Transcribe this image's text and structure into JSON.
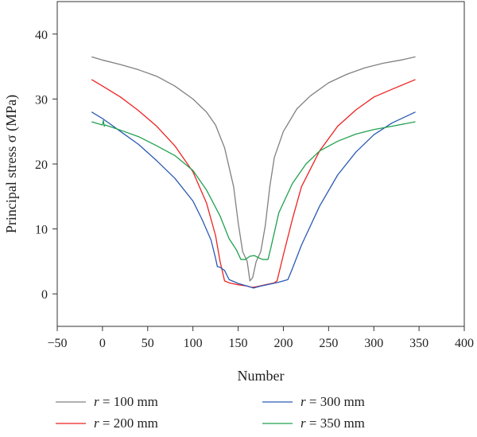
{
  "chart_data": {
    "type": "line",
    "xlabel": "Number",
    "ylabel": "Principal stress σ (MPa)",
    "xlim": [
      -50,
      400
    ],
    "ylim": [
      -5,
      45
    ],
    "xticks": [
      "−50",
      "0",
      "50",
      "100",
      "150",
      "200",
      "250",
      "300",
      "350",
      "400"
    ],
    "yticks": [
      "0",
      "10",
      "20",
      "30",
      "40"
    ],
    "xtick_values": [
      -50,
      0,
      50,
      100,
      150,
      200,
      250,
      300,
      350,
      400
    ],
    "ytick_values": [
      0,
      10,
      20,
      30,
      40
    ],
    "grid": false,
    "legend": {
      "placement": "bottom",
      "columns": 2
    },
    "series": [
      {
        "name_var": "r",
        "name_rest": " = 100 mm",
        "color": "#808080",
        "x": [
          -12,
          0,
          20,
          40,
          60,
          80,
          100,
          115,
          125,
          135,
          145,
          150,
          155,
          160,
          163,
          166,
          170,
          175,
          180,
          185,
          190,
          200,
          215,
          230,
          250,
          270,
          290,
          310,
          330,
          346
        ],
        "y": [
          36.5,
          36.0,
          35.3,
          34.5,
          33.5,
          32.0,
          30.0,
          28.0,
          26.0,
          22.5,
          16.5,
          11.0,
          6.5,
          5.0,
          2.0,
          2.5,
          5.0,
          6.5,
          10.5,
          16.5,
          21.0,
          25.0,
          28.5,
          30.5,
          32.5,
          33.8,
          34.8,
          35.5,
          36.0,
          36.5
        ]
      },
      {
        "name_var": "r",
        "name_rest": " = 200 mm",
        "color": "#ee2222",
        "x": [
          -12,
          0,
          20,
          40,
          60,
          80,
          100,
          115,
          125,
          130,
          135,
          140,
          150,
          160,
          165,
          170,
          180,
          190,
          193,
          200,
          210,
          220,
          240,
          260,
          280,
          300,
          320,
          346
        ],
        "y": [
          33.0,
          32.0,
          30.3,
          28.2,
          25.8,
          22.8,
          18.8,
          14.0,
          9.0,
          5.0,
          2.0,
          1.7,
          1.4,
          1.2,
          1.0,
          1.1,
          1.4,
          1.7,
          2.0,
          6.0,
          11.5,
          16.5,
          22.0,
          25.8,
          28.3,
          30.3,
          31.5,
          33.0
        ]
      },
      {
        "name_var": "r",
        "name_rest": " = 300 mm",
        "color": "#2a5ab3",
        "x": [
          -12,
          0,
          20,
          40,
          60,
          80,
          100,
          110,
          120,
          125,
          127,
          130,
          135,
          140,
          150,
          160,
          167,
          175,
          185,
          195,
          205,
          210,
          220,
          240,
          260,
          280,
          300,
          320,
          346
        ],
        "y": [
          28.0,
          27.0,
          25.0,
          23.0,
          20.5,
          17.8,
          14.3,
          11.5,
          8.3,
          5.5,
          4.2,
          4.1,
          3.6,
          2.2,
          1.6,
          1.2,
          0.9,
          1.2,
          1.5,
          1.8,
          2.2,
          3.9,
          7.5,
          13.5,
          18.3,
          21.8,
          24.5,
          26.3,
          28.0
        ]
      },
      {
        "name_var": "r",
        "name_rest": " = 350 mm",
        "color": "#22a050",
        "x": [
          -12,
          0,
          1,
          2,
          3,
          20,
          40,
          60,
          80,
          100,
          115,
          130,
          140,
          148,
          153,
          158,
          163,
          168,
          172,
          177,
          183,
          186,
          195,
          210,
          225,
          240,
          260,
          280,
          300,
          320,
          346
        ],
        "y": [
          26.5,
          26.0,
          26.7,
          25.8,
          26.0,
          25.2,
          24.2,
          22.8,
          21.3,
          19.0,
          16.0,
          12.0,
          8.5,
          6.8,
          5.3,
          5.3,
          5.8,
          5.9,
          5.6,
          5.3,
          5.3,
          7.0,
          12.5,
          17.0,
          20.0,
          22.0,
          23.5,
          24.6,
          25.3,
          25.8,
          26.5
        ]
      }
    ]
  }
}
